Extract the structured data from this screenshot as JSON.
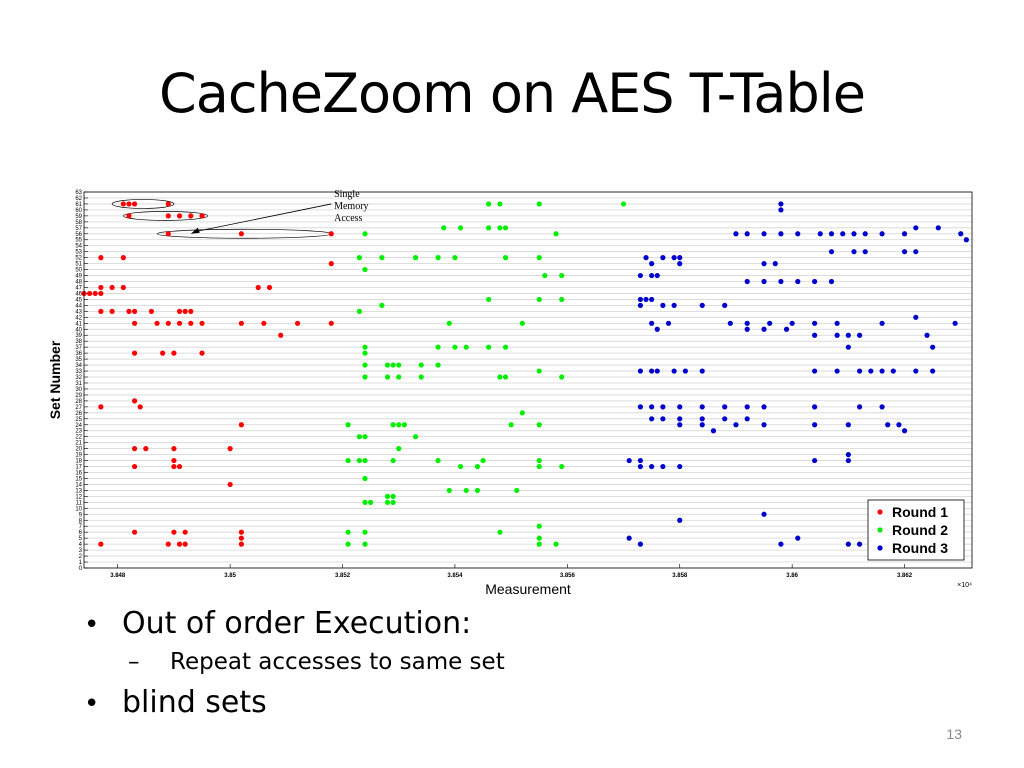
{
  "slide": {
    "title": "CacheZoom on AES T-Table",
    "bullets": [
      {
        "text": "Out of order Execution:",
        "sub": [
          "Repeat accesses to same set"
        ]
      },
      {
        "text": "blind sets",
        "sub": []
      }
    ],
    "page_number": "13"
  },
  "chart_data": {
    "type": "scatter",
    "xlabel": "Measurement",
    "ylabel": "Set Number",
    "x_exponent_label": "×10⁴",
    "xlim": [
      3.8474,
      3.8632
    ],
    "ylim": [
      0,
      63
    ],
    "xticks": [
      3.848,
      3.85,
      3.852,
      3.854,
      3.856,
      3.858,
      3.86,
      3.862
    ],
    "xtick_labels": [
      "3.848",
      "3.85",
      "3.852",
      "3.854",
      "3.856",
      "3.858",
      "3.86",
      "3.862"
    ],
    "yticks": [
      0,
      1,
      2,
      3,
      4,
      5,
      6,
      7,
      8,
      9,
      10,
      11,
      12,
      13,
      14,
      15,
      16,
      17,
      18,
      19,
      20,
      21,
      22,
      23,
      24,
      25,
      26,
      27,
      28,
      29,
      30,
      31,
      32,
      33,
      34,
      35,
      36,
      37,
      38,
      39,
      40,
      41,
      42,
      43,
      44,
      45,
      46,
      47,
      48,
      49,
      50,
      51,
      52,
      53,
      54,
      55,
      56,
      57,
      58,
      59,
      60,
      61,
      62,
      63
    ],
    "grid": "horizontal",
    "legend_position": "bottom-right",
    "annotation": {
      "text": [
        "Single",
        "Memory",
        "Access"
      ],
      "target": [
        3.8493,
        56
      ]
    },
    "highlight_ellipses": [
      {
        "xmin": 3.8479,
        "xmax": 3.849,
        "y": 61
      },
      {
        "xmin": 3.8481,
        "xmax": 3.8496,
        "y": 59
      },
      {
        "xmin": 3.8487,
        "xmax": 3.8518,
        "y": 56
      }
    ],
    "series": [
      {
        "name": "Round 1",
        "color": "#ff0000",
        "points": [
          [
            3.8481,
            61
          ],
          [
            3.8482,
            61
          ],
          [
            3.8483,
            61
          ],
          [
            3.8489,
            61
          ],
          [
            3.8482,
            59
          ],
          [
            3.8489,
            59
          ],
          [
            3.8491,
            59
          ],
          [
            3.8493,
            59
          ],
          [
            3.8495,
            59
          ],
          [
            3.8489,
            56
          ],
          [
            3.8502,
            56
          ],
          [
            3.8518,
            56
          ],
          [
            3.8477,
            52
          ],
          [
            3.8481,
            52
          ],
          [
            3.8518,
            51
          ],
          [
            3.8477,
            47
          ],
          [
            3.8479,
            47
          ],
          [
            3.8481,
            47
          ],
          [
            3.8505,
            47
          ],
          [
            3.8507,
            47
          ],
          [
            3.8474,
            46
          ],
          [
            3.8475,
            46
          ],
          [
            3.8476,
            46
          ],
          [
            3.8477,
            46
          ],
          [
            3.8477,
            43
          ],
          [
            3.8479,
            43
          ],
          [
            3.8482,
            43
          ],
          [
            3.8483,
            43
          ],
          [
            3.8486,
            43
          ],
          [
            3.8491,
            43
          ],
          [
            3.8492,
            43
          ],
          [
            3.8493,
            43
          ],
          [
            3.8483,
            41
          ],
          [
            3.8487,
            41
          ],
          [
            3.8489,
            41
          ],
          [
            3.8491,
            41
          ],
          [
            3.8493,
            41
          ],
          [
            3.8495,
            41
          ],
          [
            3.8502,
            41
          ],
          [
            3.8506,
            41
          ],
          [
            3.8512,
            41
          ],
          [
            3.8518,
            41
          ],
          [
            3.8509,
            39
          ],
          [
            3.8483,
            36
          ],
          [
            3.8488,
            36
          ],
          [
            3.849,
            36
          ],
          [
            3.8495,
            36
          ],
          [
            3.8483,
            28
          ],
          [
            3.8477,
            27
          ],
          [
            3.8484,
            27
          ],
          [
            3.8502,
            24
          ],
          [
            3.8483,
            20
          ],
          [
            3.8485,
            20
          ],
          [
            3.849,
            20
          ],
          [
            3.85,
            20
          ],
          [
            3.849,
            18
          ],
          [
            3.8483,
            17
          ],
          [
            3.849,
            17
          ],
          [
            3.8491,
            17
          ],
          [
            3.85,
            14
          ],
          [
            3.8483,
            6
          ],
          [
            3.849,
            6
          ],
          [
            3.8492,
            6
          ],
          [
            3.8502,
            6
          ],
          [
            3.8502,
            5
          ],
          [
            3.8477,
            4
          ],
          [
            3.8489,
            4
          ],
          [
            3.8491,
            4
          ],
          [
            3.8492,
            4
          ],
          [
            3.8502,
            4
          ]
        ]
      },
      {
        "name": "Round 2",
        "color": "#00ee00",
        "points": [
          [
            3.8546,
            61
          ],
          [
            3.8548,
            61
          ],
          [
            3.8555,
            61
          ],
          [
            3.857,
            61
          ],
          [
            3.8538,
            57
          ],
          [
            3.8541,
            57
          ],
          [
            3.8546,
            57
          ],
          [
            3.8548,
            57
          ],
          [
            3.8549,
            57
          ],
          [
            3.8524,
            56
          ],
          [
            3.8558,
            56
          ],
          [
            3.8523,
            52
          ],
          [
            3.8527,
            52
          ],
          [
            3.8533,
            52
          ],
          [
            3.8537,
            52
          ],
          [
            3.854,
            52
          ],
          [
            3.8549,
            52
          ],
          [
            3.8555,
            52
          ],
          [
            3.8524,
            50
          ],
          [
            3.8556,
            49
          ],
          [
            3.8559,
            49
          ],
          [
            3.8546,
            45
          ],
          [
            3.8555,
            45
          ],
          [
            3.8559,
            45
          ],
          [
            3.8527,
            44
          ],
          [
            3.8523,
            43
          ],
          [
            3.8539,
            41
          ],
          [
            3.8552,
            41
          ],
          [
            3.8537,
            37
          ],
          [
            3.854,
            37
          ],
          [
            3.8542,
            37
          ],
          [
            3.8546,
            37
          ],
          [
            3.8549,
            37
          ],
          [
            3.8524,
            37
          ],
          [
            3.8524,
            36
          ],
          [
            3.8524,
            34
          ],
          [
            3.8528,
            34
          ],
          [
            3.8529,
            34
          ],
          [
            3.853,
            34
          ],
          [
            3.8534,
            34
          ],
          [
            3.8537,
            34
          ],
          [
            3.8555,
            33
          ],
          [
            3.8524,
            32
          ],
          [
            3.8528,
            32
          ],
          [
            3.853,
            32
          ],
          [
            3.8534,
            32
          ],
          [
            3.8548,
            32
          ],
          [
            3.8549,
            32
          ],
          [
            3.8559,
            32
          ],
          [
            3.8552,
            26
          ],
          [
            3.8521,
            24
          ],
          [
            3.8529,
            24
          ],
          [
            3.853,
            24
          ],
          [
            3.8531,
            24
          ],
          [
            3.855,
            24
          ],
          [
            3.8555,
            24
          ],
          [
            3.8523,
            22
          ],
          [
            3.8524,
            22
          ],
          [
            3.8533,
            22
          ],
          [
            3.853,
            20
          ],
          [
            3.8521,
            18
          ],
          [
            3.8523,
            18
          ],
          [
            3.8524,
            18
          ],
          [
            3.8529,
            18
          ],
          [
            3.8537,
            18
          ],
          [
            3.8545,
            18
          ],
          [
            3.8555,
            18
          ],
          [
            3.8541,
            17
          ],
          [
            3.8544,
            17
          ],
          [
            3.8555,
            17
          ],
          [
            3.8559,
            17
          ],
          [
            3.8524,
            15
          ],
          [
            3.8539,
            13
          ],
          [
            3.8542,
            13
          ],
          [
            3.8544,
            13
          ],
          [
            3.8551,
            13
          ],
          [
            3.8528,
            12
          ],
          [
            3.8529,
            12
          ],
          [
            3.8524,
            11
          ],
          [
            3.8525,
            11
          ],
          [
            3.8528,
            11
          ],
          [
            3.8529,
            11
          ],
          [
            3.8555,
            7
          ],
          [
            3.8521,
            6
          ],
          [
            3.8524,
            6
          ],
          [
            3.8548,
            6
          ],
          [
            3.8555,
            5
          ],
          [
            3.8521,
            4
          ],
          [
            3.8524,
            4
          ],
          [
            3.8555,
            4
          ],
          [
            3.8558,
            4
          ]
        ]
      },
      {
        "name": "Round 3",
        "color": "#0000cc",
        "points": [
          [
            3.8598,
            61
          ],
          [
            3.8598,
            60
          ],
          [
            3.8622,
            57
          ],
          [
            3.8626,
            57
          ],
          [
            3.859,
            56
          ],
          [
            3.8592,
            56
          ],
          [
            3.8595,
            56
          ],
          [
            3.8598,
            56
          ],
          [
            3.8601,
            56
          ],
          [
            3.8605,
            56
          ],
          [
            3.8607,
            56
          ],
          [
            3.8609,
            56
          ],
          [
            3.8611,
            56
          ],
          [
            3.8613,
            56
          ],
          [
            3.8616,
            56
          ],
          [
            3.862,
            56
          ],
          [
            3.863,
            56
          ],
          [
            3.8631,
            55
          ],
          [
            3.8607,
            53
          ],
          [
            3.8611,
            53
          ],
          [
            3.8613,
            53
          ],
          [
            3.862,
            53
          ],
          [
            3.8622,
            53
          ],
          [
            3.8574,
            52
          ],
          [
            3.8577,
            52
          ],
          [
            3.8579,
            52
          ],
          [
            3.858,
            52
          ],
          [
            3.858,
            51
          ],
          [
            3.8575,
            51
          ],
          [
            3.8595,
            51
          ],
          [
            3.8597,
            51
          ],
          [
            3.8573,
            49
          ],
          [
            3.8575,
            49
          ],
          [
            3.8576,
            49
          ],
          [
            3.8592,
            48
          ],
          [
            3.8595,
            48
          ],
          [
            3.8598,
            48
          ],
          [
            3.8601,
            48
          ],
          [
            3.8604,
            48
          ],
          [
            3.8607,
            48
          ],
          [
            3.8573,
            45
          ],
          [
            3.8574,
            45
          ],
          [
            3.8575,
            45
          ],
          [
            3.8573,
            44
          ],
          [
            3.8577,
            44
          ],
          [
            3.8579,
            44
          ],
          [
            3.8584,
            44
          ],
          [
            3.8588,
            44
          ],
          [
            3.8622,
            42
          ],
          [
            3.8575,
            41
          ],
          [
            3.8578,
            41
          ],
          [
            3.8589,
            41
          ],
          [
            3.8592,
            41
          ],
          [
            3.8596,
            41
          ],
          [
            3.86,
            41
          ],
          [
            3.8604,
            41
          ],
          [
            3.8608,
            41
          ],
          [
            3.8616,
            41
          ],
          [
            3.8629,
            41
          ],
          [
            3.8576,
            40
          ],
          [
            3.8592,
            40
          ],
          [
            3.8595,
            40
          ],
          [
            3.8599,
            40
          ],
          [
            3.8604,
            39
          ],
          [
            3.8608,
            39
          ],
          [
            3.861,
            39
          ],
          [
            3.8612,
            39
          ],
          [
            3.8624,
            39
          ],
          [
            3.861,
            37
          ],
          [
            3.8625,
            37
          ],
          [
            3.8573,
            33
          ],
          [
            3.8575,
            33
          ],
          [
            3.8576,
            33
          ],
          [
            3.8579,
            33
          ],
          [
            3.8581,
            33
          ],
          [
            3.8584,
            33
          ],
          [
            3.8604,
            33
          ],
          [
            3.8608,
            33
          ],
          [
            3.8612,
            33
          ],
          [
            3.8614,
            33
          ],
          [
            3.8616,
            33
          ],
          [
            3.8618,
            33
          ],
          [
            3.8622,
            33
          ],
          [
            3.8625,
            33
          ],
          [
            3.8573,
            27
          ],
          [
            3.8575,
            27
          ],
          [
            3.8577,
            27
          ],
          [
            3.858,
            27
          ],
          [
            3.8584,
            27
          ],
          [
            3.8588,
            27
          ],
          [
            3.8592,
            27
          ],
          [
            3.8595,
            27
          ],
          [
            3.8604,
            27
          ],
          [
            3.8612,
            27
          ],
          [
            3.8616,
            27
          ],
          [
            3.8575,
            25
          ],
          [
            3.8577,
            25
          ],
          [
            3.858,
            25
          ],
          [
            3.8584,
            25
          ],
          [
            3.8588,
            25
          ],
          [
            3.8592,
            25
          ],
          [
            3.858,
            24
          ],
          [
            3.8584,
            24
          ],
          [
            3.8586,
            23
          ],
          [
            3.859,
            24
          ],
          [
            3.8595,
            24
          ],
          [
            3.8604,
            24
          ],
          [
            3.861,
            24
          ],
          [
            3.8617,
            24
          ],
          [
            3.8619,
            24
          ],
          [
            3.862,
            23
          ],
          [
            3.8571,
            18
          ],
          [
            3.8573,
            18
          ],
          [
            3.8573,
            17
          ],
          [
            3.8575,
            17
          ],
          [
            3.8577,
            17
          ],
          [
            3.858,
            17
          ],
          [
            3.8604,
            18
          ],
          [
            3.861,
            18
          ],
          [
            3.861,
            19
          ],
          [
            3.8595,
            9
          ],
          [
            3.858,
            8
          ],
          [
            3.8571,
            5
          ],
          [
            3.8573,
            4
          ],
          [
            3.8598,
            4
          ],
          [
            3.8601,
            5
          ],
          [
            3.861,
            4
          ],
          [
            3.8612,
            4
          ]
        ]
      }
    ]
  }
}
